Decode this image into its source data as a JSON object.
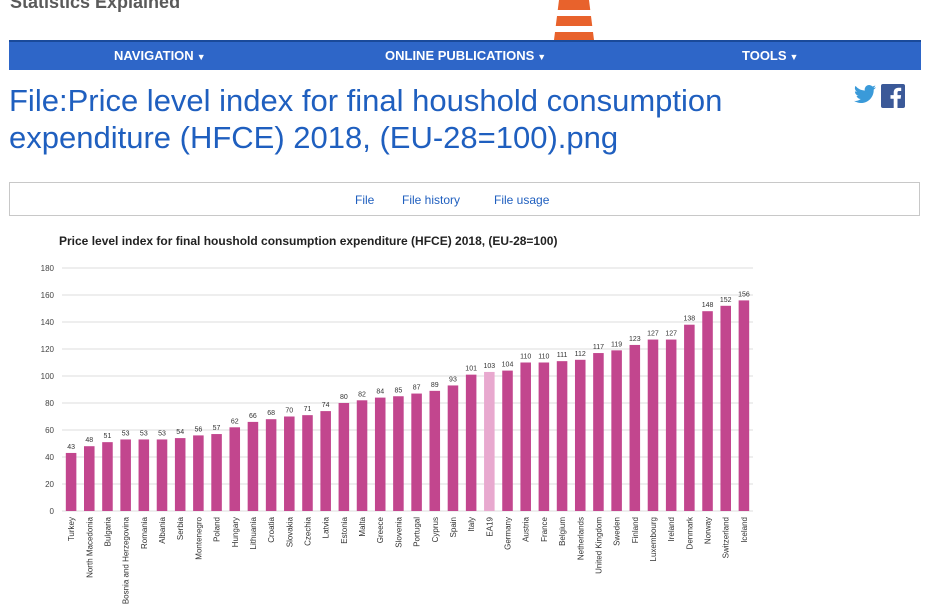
{
  "site": {
    "name": "Statistics Explained"
  },
  "nav": {
    "items": [
      {
        "label": "NAVIGATION"
      },
      {
        "label": "ONLINE PUBLICATIONS"
      },
      {
        "label": "TOOLS"
      }
    ]
  },
  "page": {
    "title": "File:Price level index for final houshold consumption expenditure (HFCE) 2018, (EU-28=100).png"
  },
  "social": {
    "icons": [
      "twitter-icon",
      "facebook-icon"
    ]
  },
  "tabs": [
    {
      "label": "File"
    },
    {
      "label": "File history"
    },
    {
      "label": "File usage"
    }
  ],
  "colors": {
    "nav_bg": "#2e66c8",
    "title": "#1f5fbf",
    "bar": "#c2468e",
    "bar_highlight": "#e8a9cf",
    "twitter": "#3a9ad9",
    "facebook": "#3b5998"
  },
  "chart_data": {
    "type": "bar",
    "title": "Price level index for final houshold consumption expenditure (HFCE) 2018, (EU-28=100)",
    "xlabel": "",
    "ylabel": "",
    "ylim": [
      0,
      180
    ],
    "yticks": [
      0,
      20,
      40,
      60,
      80,
      100,
      120,
      140,
      160,
      180
    ],
    "grid": true,
    "highlight": "EA19",
    "categories": [
      "Turkey",
      "North Macedonia",
      "Bulgaria",
      "Bosnia and Herzegovina",
      "Romania",
      "Albania",
      "Serbia",
      "Montenegro",
      "Poland",
      "Hungary",
      "Lithuania",
      "Croatia",
      "Slovakia",
      "Czechia",
      "Latvia",
      "Estonia",
      "Malta",
      "Greece",
      "Slovenia",
      "Portugal",
      "Cyprus",
      "Spain",
      "Italy",
      "EA19",
      "Germany",
      "Austria",
      "France",
      "Belgium",
      "Netherlands",
      "United Kingdom",
      "Sweden",
      "Finland",
      "Luxembourg",
      "Ireland",
      "Denmark",
      "Norway",
      "Switzerland",
      "Iceland"
    ],
    "values": [
      43,
      48,
      51,
      53,
      53,
      53,
      54,
      56,
      57,
      62,
      66,
      68,
      70,
      71,
      74,
      80,
      82,
      84,
      85,
      87,
      89,
      93,
      101,
      103,
      104,
      110,
      110,
      111,
      112,
      117,
      119,
      123,
      127,
      127,
      138,
      148,
      152,
      156
    ]
  }
}
